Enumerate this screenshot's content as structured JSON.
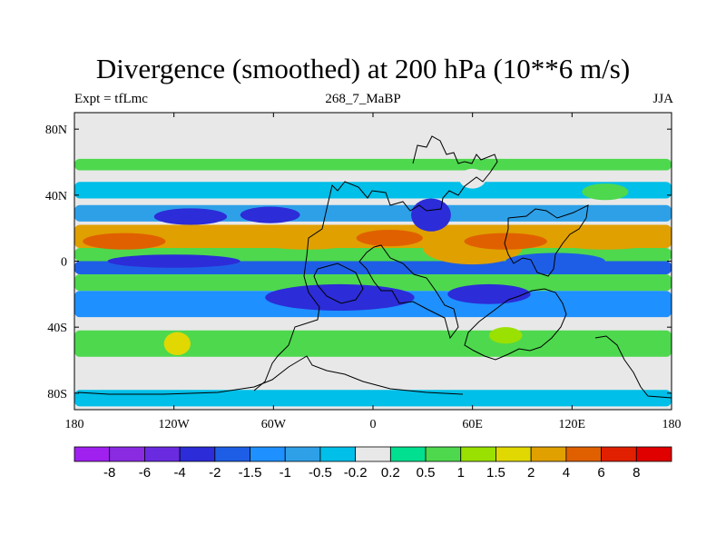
{
  "chart_data": {
    "type": "heatmap",
    "title": "Divergence (smoothed) at 200 hPa (10**6 m/s)",
    "subtitle_left": "Expt = tfLmc",
    "subtitle_center": "268_7_MaBP",
    "subtitle_right": "JJA",
    "x_ticks": [
      {
        "value": -180,
        "label": "180"
      },
      {
        "value": -120,
        "label": "120W"
      },
      {
        "value": -60,
        "label": "60W"
      },
      {
        "value": 0,
        "label": "0"
      },
      {
        "value": 60,
        "label": "60E"
      },
      {
        "value": 120,
        "label": "120E"
      },
      {
        "value": 180,
        "label": "180"
      }
    ],
    "y_ticks": [
      {
        "value": 80,
        "label": "80N"
      },
      {
        "value": 40,
        "label": "40N"
      },
      {
        "value": 0,
        "label": "0"
      },
      {
        "value": -40,
        "label": "40S"
      },
      {
        "value": -80,
        "label": "80S"
      }
    ],
    "xlim": [
      -180,
      180
    ],
    "ylim": [
      -90,
      90
    ],
    "colorbar": {
      "levels": [
        "-8",
        "-6",
        "-4",
        "-2",
        "-1.5",
        "-1",
        "-0.5",
        "-0.2",
        "0.2",
        "0.5",
        "1",
        "1.5",
        "2",
        "4",
        "6",
        "8"
      ],
      "colors": [
        "#a020f0",
        "#8a2be2",
        "#6a2be0",
        "#2c2cd8",
        "#1e5ee6",
        "#1e90ff",
        "#2ea0e8",
        "#00bfe8",
        "#e8e8e8",
        "#00e090",
        "#4ed84e",
        "#9ae000",
        "#e0d800",
        "#e0a000",
        "#e06000",
        "#e02000",
        "#e00000"
      ]
    },
    "background_color": "#e8e8e8",
    "zonal_bands": [
      {
        "lat_min": 80,
        "lat_max": 90,
        "color": "#e8e8e8"
      },
      {
        "lat_min": 55,
        "lat_max": 62,
        "color": "#4ed84e"
      },
      {
        "lat_min": 48,
        "lat_max": 55,
        "color": "#e8e8e8"
      },
      {
        "lat_min": 38,
        "lat_max": 48,
        "color": "#00bfe8"
      },
      {
        "lat_min": 24,
        "lat_max": 34,
        "color": "#2ea0e8"
      },
      {
        "lat_min": 8,
        "lat_max": 22,
        "color": "#e0a000"
      },
      {
        "lat_min": 0,
        "lat_max": 8,
        "color": "#4ed84e"
      },
      {
        "lat_min": -8,
        "lat_max": 0,
        "color": "#1e5ee6"
      },
      {
        "lat_min": -18,
        "lat_max": -8,
        "color": "#4ed84e"
      },
      {
        "lat_min": -34,
        "lat_max": -18,
        "color": "#1e90ff"
      },
      {
        "lat_min": -42,
        "lat_max": -34,
        "color": "#e8e8e8"
      },
      {
        "lat_min": -58,
        "lat_max": -42,
        "color": "#4ed84e"
      },
      {
        "lat_min": -72,
        "lat_max": -58,
        "color": "#e8e8e8"
      },
      {
        "lat_min": -88,
        "lat_max": -78,
        "color": "#00bfe8"
      }
    ],
    "blobs": [
      {
        "lon": -110,
        "lat": 27,
        "rlon": 22,
        "rlat": 5,
        "color": "#2c2cd8"
      },
      {
        "lon": -62,
        "lat": 28,
        "rlon": 18,
        "rlat": 5,
        "color": "#2c2cd8"
      },
      {
        "lon": -150,
        "lat": 12,
        "rlon": 25,
        "rlat": 5,
        "color": "#e06000"
      },
      {
        "lon": -40,
        "lat": 12,
        "rlon": 30,
        "rlat": 5,
        "color": "#e0a000"
      },
      {
        "lon": 10,
        "lat": 14,
        "rlon": 20,
        "rlat": 5,
        "color": "#e06000"
      },
      {
        "lon": 60,
        "lat": 8,
        "rlon": 30,
        "rlat": 10,
        "color": "#e0a000"
      },
      {
        "lon": 80,
        "lat": 12,
        "rlon": 25,
        "rlat": 5,
        "color": "#e06000"
      },
      {
        "lon": 140,
        "lat": 12,
        "rlon": 30,
        "rlat": 5,
        "color": "#e0a000"
      },
      {
        "lon": 110,
        "lat": 0,
        "rlon": 30,
        "rlat": 5,
        "color": "#1e5ee6"
      },
      {
        "lon": -120,
        "lat": 0,
        "rlon": 40,
        "rlat": 4,
        "color": "#2c2cd8"
      },
      {
        "lon": -20,
        "lat": -22,
        "rlon": 45,
        "rlat": 8,
        "color": "#2c2cd8"
      },
      {
        "lon": 70,
        "lat": -20,
        "rlon": 25,
        "rlat": 6,
        "color": "#2c2cd8"
      },
      {
        "lon": 35,
        "lat": 28,
        "rlon": 12,
        "rlat": 10,
        "color": "#2c2cd8"
      },
      {
        "lon": -118,
        "lat": -50,
        "rlon": 8,
        "rlat": 7,
        "color": "#e0d800"
      },
      {
        "lon": 80,
        "lat": -45,
        "rlon": 10,
        "rlat": 5,
        "color": "#9ae000"
      },
      {
        "lon": 140,
        "lat": 42,
        "rlon": 14,
        "rlat": 5,
        "color": "#4ed84e"
      },
      {
        "lon": 60,
        "lat": 50,
        "rlon": 8,
        "rlat": 6,
        "color": "#e8e8e8"
      }
    ]
  }
}
